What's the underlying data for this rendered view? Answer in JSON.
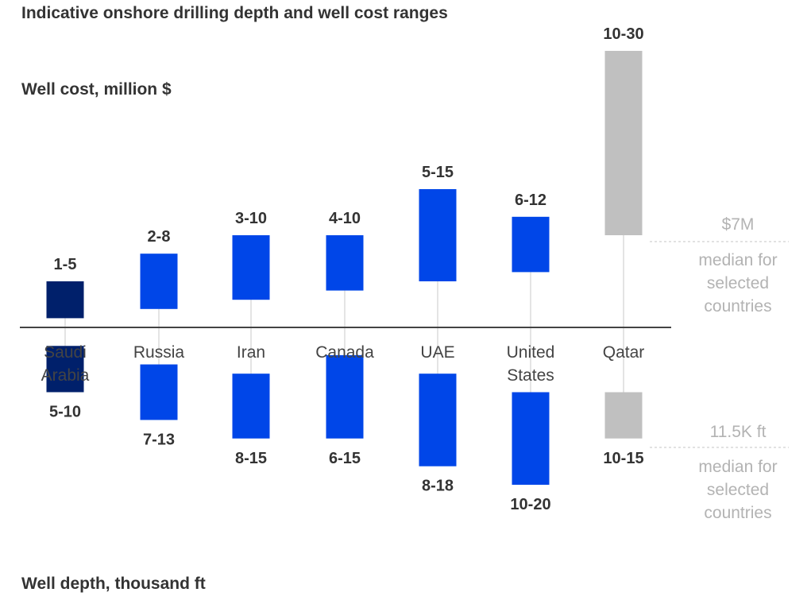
{
  "chart_data": {
    "type": "bar",
    "title": "Indicative onshore drilling depth and well cost ranges",
    "categories": [
      "Saudi Arabia",
      "Russia",
      "Iran",
      "Canada",
      "UAE",
      "United States",
      "Qatar"
    ],
    "category_lines": [
      [
        "Saudi",
        "Arabia"
      ],
      [
        "Russia"
      ],
      [
        "Iran"
      ],
      [
        "Canada"
      ],
      [
        "UAE"
      ],
      [
        "United",
        "States"
      ],
      [
        "Qatar"
      ]
    ],
    "cost": {
      "label": "Well cost, million $",
      "ranges": [
        [
          1,
          5
        ],
        [
          2,
          8
        ],
        [
          3,
          10
        ],
        [
          4,
          10
        ],
        [
          5,
          15
        ],
        [
          6,
          12
        ],
        [
          10,
          30
        ]
      ],
      "labels": [
        "1-5",
        "2-8",
        "3-10",
        "4-10",
        "5-15",
        "6-12",
        "10-30"
      ],
      "median": 7,
      "median_label": "$7M",
      "median_note": [
        "median for",
        "selected",
        "countries"
      ]
    },
    "depth": {
      "label": "Well depth, thousand ft",
      "ranges": [
        [
          5,
          10
        ],
        [
          7,
          13
        ],
        [
          8,
          15
        ],
        [
          6,
          15
        ],
        [
          8,
          18
        ],
        [
          10,
          20
        ],
        [
          10,
          15
        ]
      ],
      "labels": [
        "5-10",
        "7-13",
        "8-15",
        "6-15",
        "8-18",
        "10-20",
        "10-15"
      ],
      "median": 11.5,
      "median_label": "11.5K ft",
      "median_note": [
        "median for",
        "selected",
        "countries"
      ]
    },
    "colors": {
      "highlight": "#00206b",
      "bar": "#0046e8",
      "outlier": "#c0c0c0",
      "connector": "#c8c8c8",
      "axis": "#444444",
      "median_text": "#b3b3b3"
    },
    "series_style": [
      "highlight",
      "bar",
      "bar",
      "bar",
      "bar",
      "bar",
      "outlier"
    ]
  }
}
